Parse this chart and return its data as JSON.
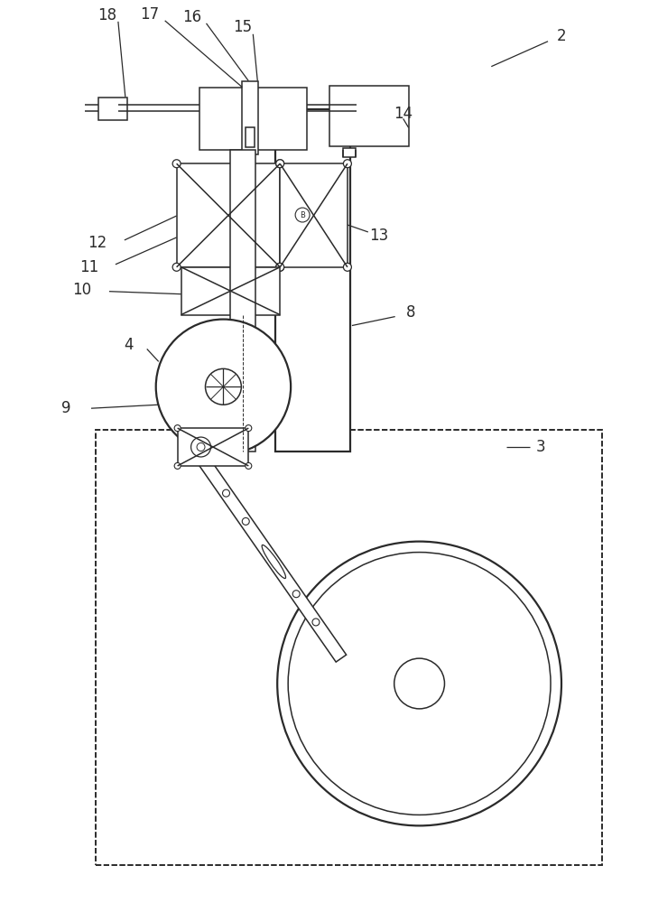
{
  "bg_color": "#ffffff",
  "line_color": "#2a2a2a",
  "fig_width": 7.19,
  "fig_height": 10.0,
  "lw": 1.1,
  "lw_thick": 1.6,
  "label_fontsize": 12
}
